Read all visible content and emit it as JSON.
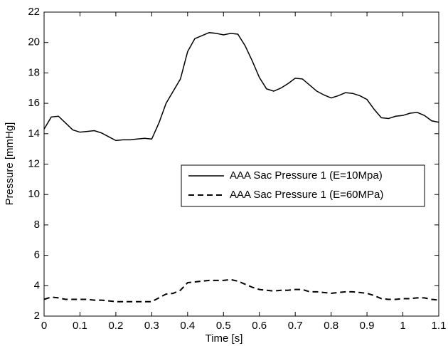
{
  "chart_data": {
    "type": "line",
    "x_label": "Time [s]",
    "y_label": "Pressure [mmHg]",
    "x": [
      0,
      0.02,
      0.04,
      0.06,
      0.08,
      0.1,
      0.12,
      0.14,
      0.16,
      0.18,
      0.2,
      0.22,
      0.24,
      0.26,
      0.28,
      0.3,
      0.32,
      0.34,
      0.36,
      0.38,
      0.4,
      0.42,
      0.44,
      0.46,
      0.48,
      0.5,
      0.52,
      0.54,
      0.56,
      0.58,
      0.6,
      0.62,
      0.64,
      0.66,
      0.68,
      0.7,
      0.72,
      0.74,
      0.76,
      0.78,
      0.8,
      0.82,
      0.84,
      0.86,
      0.88,
      0.9,
      0.92,
      0.94,
      0.96,
      0.98,
      1.0,
      1.02,
      1.04,
      1.06,
      1.08,
      1.1
    ],
    "series": [
      {
        "name": "AAA Sac Pressure 1 (E=10Mpa)",
        "color": "#000000",
        "line_style": "solid",
        "values": [
          14.3,
          15.1,
          15.15,
          14.7,
          14.25,
          14.1,
          14.15,
          14.2,
          14.05,
          13.8,
          13.55,
          13.6,
          13.6,
          13.65,
          13.7,
          13.65,
          14.7,
          16.0,
          16.8,
          17.6,
          19.4,
          20.25,
          20.45,
          20.65,
          20.6,
          20.5,
          20.6,
          20.55,
          19.8,
          18.8,
          17.7,
          16.95,
          16.8,
          17.0,
          17.3,
          17.65,
          17.6,
          17.2,
          16.8,
          16.55,
          16.35,
          16.5,
          16.7,
          16.65,
          16.5,
          16.25,
          15.6,
          15.05,
          15.0,
          15.15,
          15.2,
          15.35,
          15.4,
          15.2,
          14.85,
          14.75
        ]
      },
      {
        "name": "AAA Sac Pressure 1 (E=60MPa)",
        "color": "#000000",
        "line_style": "dashed",
        "values": [
          3.1,
          3.25,
          3.2,
          3.1,
          3.1,
          3.1,
          3.1,
          3.05,
          3.05,
          3.0,
          2.95,
          2.95,
          2.95,
          2.95,
          2.95,
          2.95,
          3.2,
          3.45,
          3.5,
          3.7,
          4.2,
          4.25,
          4.3,
          4.35,
          4.35,
          4.35,
          4.4,
          4.3,
          4.1,
          3.9,
          3.75,
          3.7,
          3.65,
          3.7,
          3.7,
          3.75,
          3.75,
          3.6,
          3.6,
          3.55,
          3.5,
          3.55,
          3.6,
          3.6,
          3.55,
          3.5,
          3.35,
          3.15,
          3.1,
          3.1,
          3.15,
          3.15,
          3.2,
          3.2,
          3.1,
          3.05
        ]
      }
    ],
    "xlim": [
      0,
      1.1
    ],
    "xticks": [
      0,
      0.1,
      0.2,
      0.3,
      0.4,
      0.5,
      0.6,
      0.7,
      0.8,
      0.9,
      1,
      1.1
    ],
    "ylim": [
      2,
      22
    ],
    "yticks": [
      2,
      4,
      6,
      8,
      10,
      12,
      14,
      16,
      18,
      20,
      22
    ],
    "grid": false,
    "legend": "right"
  }
}
